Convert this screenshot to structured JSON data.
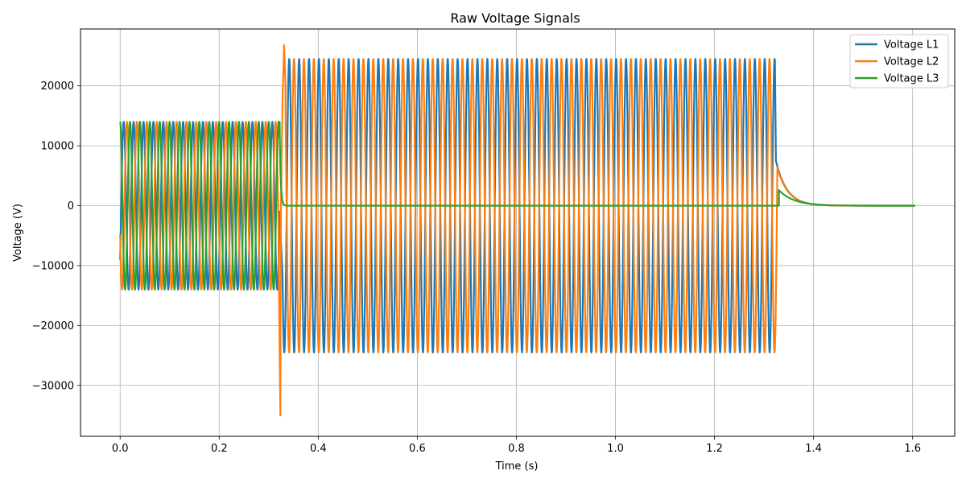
{
  "chart_data": {
    "type": "line",
    "title": "Raw Voltage Signals",
    "xlabel": "Time (s)",
    "ylabel": "Voltage (V)",
    "xlim": [
      -0.08,
      1.685
    ],
    "ylim": [
      -38500,
      29500
    ],
    "xticks": [
      0.0,
      0.2,
      0.4,
      0.6,
      0.8,
      1.0,
      1.2,
      1.4,
      1.6
    ],
    "xtick_labels": [
      "0.0",
      "0.2",
      "0.4",
      "0.6",
      "0.8",
      "1.0",
      "1.2",
      "1.4",
      "1.6"
    ],
    "yticks": [
      -30000,
      -20000,
      -10000,
      0,
      10000,
      20000
    ],
    "ytick_labels": [
      "−30000",
      "−20000",
      "−10000",
      "0",
      "10000",
      "20000"
    ],
    "grid": true,
    "legend_position": "top-right",
    "series": [
      {
        "name": "Voltage L1",
        "color": "#1f77b4",
        "segments": [
          {
            "type": "sine",
            "t_start": 0.0,
            "t_end": 0.322,
            "amplitude": 14000,
            "frequency_hz": 50,
            "phase_deg": -40
          },
          {
            "type": "sine",
            "t_start": 0.328,
            "t_end": 1.322,
            "amplitude": 24500,
            "frequency_hz": 50,
            "phase_deg": 65
          },
          {
            "type": "decay",
            "t_start": 1.324,
            "t_end": 1.605,
            "start_value": 7500,
            "tau": 0.022
          }
        ]
      },
      {
        "name": "Voltage L2",
        "color": "#ff7f0e",
        "segments": [
          {
            "type": "sine",
            "t_start": 0.0,
            "t_end": 0.32,
            "amplitude": 14000,
            "frequency_hz": 50,
            "phase_deg": -160
          },
          {
            "type": "points",
            "x": [
              0.32,
              0.3235,
              0.3245,
              0.326,
              0.328,
              0.331,
              0.334
            ],
            "y": [
              -9000,
              -35000,
              -2000,
              8000,
              18000,
              26800,
              20000
            ]
          },
          {
            "type": "sine",
            "t_start": 0.334,
            "t_end": 1.326,
            "amplitude": 24500,
            "frequency_hz": 50,
            "phase_deg": -110
          },
          {
            "type": "decay",
            "t_start": 1.327,
            "t_end": 1.605,
            "start_value": 6300,
            "tau": 0.022
          }
        ]
      },
      {
        "name": "Voltage L3",
        "color": "#2ca02c",
        "segments": [
          {
            "type": "sine",
            "t_start": 0.0,
            "t_end": 0.322,
            "amplitude": 14000,
            "frequency_hz": 50,
            "phase_deg": 90
          },
          {
            "type": "decay",
            "t_start": 0.322,
            "t_end": 0.335,
            "start_value": 14000,
            "tau": 0.002
          },
          {
            "type": "flat",
            "t_start": 0.335,
            "t_end": 1.33,
            "value": 0
          },
          {
            "type": "decay",
            "t_start": 1.33,
            "t_end": 1.605,
            "start_value": 2600,
            "tau": 0.03
          }
        ]
      }
    ]
  }
}
